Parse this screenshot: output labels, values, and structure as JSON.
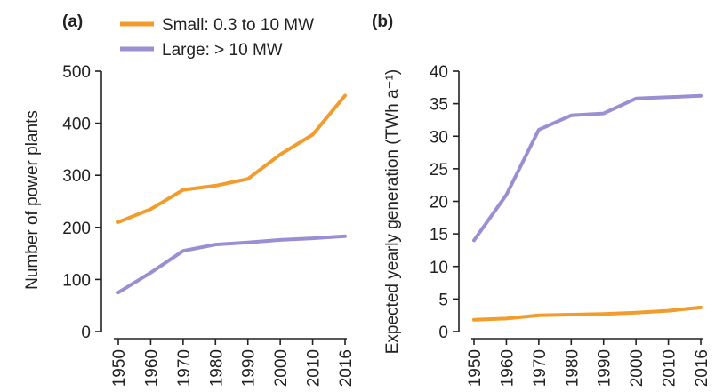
{
  "legend": [
    {
      "name": "Small: 0.3 to 10 MW",
      "color": "#F39C2C"
    },
    {
      "name": "Large: > 10 MW",
      "color": "#9B8FD4"
    }
  ],
  "chart_data": [
    {
      "type": "line",
      "panel_label": "(a)",
      "title": "",
      "xlabel": "",
      "ylabel": "Number of power plants",
      "x": [
        "1950",
        "1960",
        "1970",
        "1980",
        "1990",
        "2000",
        "2010",
        "2016"
      ],
      "yticks": [
        "0",
        "100",
        "200",
        "300",
        "400",
        "500"
      ],
      "ylim": [
        0,
        500
      ],
      "grid": false,
      "series": [
        {
          "name": "Small: 0.3 to 10 MW",
          "color": "#F39C2C",
          "values": [
            210,
            235,
            272,
            280,
            293,
            340,
            378,
            453
          ]
        },
        {
          "name": "Large: > 10 MW",
          "color": "#9B8FD4",
          "values": [
            75,
            113,
            155,
            167,
            171,
            176,
            179,
            183
          ]
        }
      ]
    },
    {
      "type": "line",
      "panel_label": "(b)",
      "title": "",
      "xlabel": "",
      "ylabel": "Expected yearly generation (TWh a⁻¹)",
      "x": [
        "1950",
        "1960",
        "1970",
        "1980",
        "1990",
        "2000",
        "2010",
        "2016"
      ],
      "yticks": [
        "0",
        "5",
        "10",
        "15",
        "20",
        "25",
        "30",
        "35",
        "40"
      ],
      "ylim": [
        0,
        40
      ],
      "grid": false,
      "series": [
        {
          "name": "Small: 0.3 to 10 MW",
          "color": "#F39C2C",
          "values": [
            1.8,
            2.0,
            2.5,
            2.6,
            2.7,
            2.9,
            3.2,
            3.7
          ]
        },
        {
          "name": "Large: > 10 MW",
          "color": "#9B8FD4",
          "values": [
            14,
            21,
            31,
            33.2,
            33.5,
            35.8,
            36,
            36.2
          ]
        }
      ]
    }
  ]
}
